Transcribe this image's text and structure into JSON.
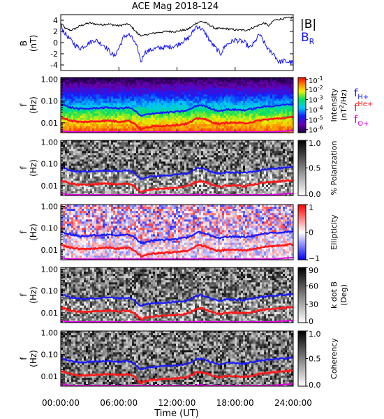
{
  "chart_data": {
    "type": "line",
    "title": "ACE Mag 2018-124",
    "xlabel": "Time (UT)",
    "x_tick_labels": [
      "00:00:00",
      "06:00:00",
      "12:00:00",
      "18:00:00",
      "24:00:00"
    ],
    "x_ticks_hours": [
      0,
      6,
      12,
      18,
      24
    ],
    "xlim_hours": [
      0,
      24
    ],
    "colors": {
      "B_total": "#000000",
      "B_R": "#1414ff",
      "fH": "#1a1aff",
      "fHe": "#ff1a1a",
      "fO": "#e000e0"
    },
    "panels": [
      {
        "name": "field",
        "ylabel": "B",
        "yunit": "(nT)",
        "ylim": [
          -5,
          5
        ],
        "yticks": [
          "4",
          "2",
          "0",
          "-2",
          "-4"
        ],
        "ytick_values": [
          4,
          2,
          0,
          -2,
          -4
        ],
        "legend": [
          "|B|",
          "B",
          "R"
        ],
        "series": [
          {
            "name": "|B|",
            "x": [
              0,
              0.5,
              1,
              1.5,
              2,
              2.5,
              3,
              4,
              5,
              6,
              6.5,
              7,
              7.5,
              8,
              8.5,
              9,
              10,
              11,
              12,
              12.5,
              13,
              13.5,
              14,
              14.5,
              15,
              15.5,
              16,
              17,
              18,
              19,
              19.5,
              20,
              21,
              21.5,
              22,
              23,
              24
            ],
            "values": [
              3.5,
              2.5,
              2.2,
              2.5,
              3.0,
              3.3,
              3.5,
              3.2,
              3.3,
              3.0,
              3.2,
              3.3,
              2.5,
              1.5,
              1.2,
              1.5,
              1.8,
              2.0,
              2.0,
              2.2,
              2.3,
              2.8,
              3.5,
              3.8,
              3.5,
              3.0,
              2.5,
              2.5,
              2.3,
              2.2,
              2.4,
              2.8,
              3.5,
              3.0,
              4.0,
              4.3,
              4.5
            ]
          },
          {
            "name": "B_R",
            "x": [
              0,
              0.5,
              1,
              1.5,
              2,
              2.5,
              3,
              3.5,
              4,
              4.5,
              5,
              5.5,
              6,
              6.5,
              7,
              7.5,
              8,
              8.3,
              8.6,
              9,
              9.5,
              10,
              11,
              12,
              12.5,
              13,
              13.5,
              14,
              14.5,
              15,
              15.5,
              16,
              16.5,
              17,
              18,
              19,
              19.5,
              20,
              20.5,
              21,
              21.5,
              22,
              22.5,
              23,
              24
            ],
            "values": [
              3.0,
              1.5,
              0.5,
              -0.5,
              -1.0,
              -0.5,
              0.0,
              0.5,
              0.0,
              -0.5,
              -1.5,
              -2.5,
              -1.0,
              1.0,
              1.5,
              0.5,
              -1.5,
              -3.5,
              -1.8,
              -1.5,
              -1.2,
              -1.0,
              -0.8,
              -0.5,
              0.2,
              0.5,
              1.5,
              3.0,
              2.5,
              1.5,
              0.0,
              -1.0,
              -2.0,
              -0.5,
              0.5,
              0.0,
              -1.0,
              0.0,
              1.5,
              0.0,
              -1.5,
              -2.0,
              -3.5,
              -3.3,
              -3.6
            ]
          }
        ]
      },
      {
        "name": "intensity",
        "ylabel": "f",
        "yunit": "(Hz)",
        "ylim": [
          0.0035,
          1.2
        ],
        "yscale": "log",
        "yticks": [
          "1.00",
          "0.10",
          "0.01"
        ],
        "ytick_values": [
          1,
          0.1,
          0.01
        ],
        "colorbar": {
          "label": "Intensity",
          "unit": "(nT",
          "unit_sup": "2",
          "unit_rest": "/Hz)",
          "tick_base": "10",
          "tick_exponents": [
            "-1",
            "-2",
            "-3",
            "-4",
            "-5",
            "-6"
          ],
          "tick_values": [
            -1,
            -2,
            -3,
            -4,
            -5,
            -6
          ],
          "range": [
            -6.3,
            -0.8
          ]
        },
        "legend": [
          {
            "label": "f",
            "sub": "H+",
            "color": "#1a1aff"
          },
          {
            "label": "f",
            "sup": "He+",
            "color": "#ff1a1a"
          },
          {
            "label": "f",
            "sub": "O+",
            "color": "#e000e0"
          }
        ]
      },
      {
        "name": "polarization",
        "ylabel": "f",
        "yunit": "(Hz)",
        "ylim": [
          0.0035,
          1.2
        ],
        "yscale": "log",
        "yticks": [
          "1.00",
          "0.10",
          "0.01"
        ],
        "ytick_values": [
          1,
          0.1,
          0.01
        ],
        "colorbar": {
          "label": "% Polarization",
          "ticks": [
            "1.0",
            "0.5",
            "0.0"
          ],
          "tick_values": [
            1.0,
            0.5,
            0.0
          ],
          "range": [
            0,
            1
          ]
        }
      },
      {
        "name": "ellipticity",
        "ylabel": "f",
        "yunit": "(Hz)",
        "ylim": [
          0.0035,
          1.2
        ],
        "yscale": "log",
        "yticks": [
          "1.00",
          "0.10",
          "0.01"
        ],
        "ytick_values": [
          1,
          0.1,
          0.01
        ],
        "colorbar": {
          "label": "Ellipticity",
          "ticks": [
            "1",
            "0",
            "−1"
          ],
          "tick_values": [
            1,
            0,
            -1
          ],
          "range": [
            -1,
            1
          ]
        }
      },
      {
        "name": "kdotb",
        "ylabel": "f",
        "yunit": "(Hz)",
        "ylim": [
          0.0035,
          1.2
        ],
        "yscale": "log",
        "yticks": [
          "1.00",
          "0.10",
          "0.01"
        ],
        "ytick_values": [
          1,
          0.1,
          0.01
        ],
        "colorbar": {
          "label": "k dot B",
          "unit": "(Deg)",
          "ticks": [
            "90",
            "60",
            "30",
            "0"
          ],
          "tick_values": [
            90,
            60,
            30,
            0
          ],
          "range": [
            0,
            90
          ]
        }
      },
      {
        "name": "coherency",
        "ylabel": "f",
        "yunit": "(Hz)",
        "ylim": [
          0.0035,
          1.2
        ],
        "yscale": "log",
        "yticks": [
          "1.00",
          "0.10",
          "0.01"
        ],
        "ytick_values": [
          1,
          0.1,
          0.01
        ],
        "colorbar": {
          "label": "Coherency",
          "ticks": [
            "1.0",
            "0.5",
            "0.0"
          ],
          "tick_values": [
            1.0,
            0.5,
            0.0
          ],
          "range": [
            0,
            1
          ]
        }
      }
    ],
    "gyrofrequency_lines": {
      "x": [
        0,
        1,
        2,
        3,
        4,
        5,
        6,
        6.5,
        7,
        7.5,
        8,
        8.3,
        8.6,
        9,
        9.5,
        10,
        11,
        12,
        12.5,
        13,
        13.5,
        14,
        14.5,
        15,
        15.5,
        16,
        16.5,
        17,
        18,
        19,
        20,
        21,
        22,
        23,
        24
      ],
      "fH": [
        0.07,
        0.05,
        0.043,
        0.045,
        0.048,
        0.05,
        0.045,
        0.048,
        0.05,
        0.04,
        0.025,
        0.02,
        0.022,
        0.025,
        0.027,
        0.028,
        0.03,
        0.032,
        0.034,
        0.036,
        0.045,
        0.06,
        0.065,
        0.055,
        0.045,
        0.038,
        0.035,
        0.04,
        0.04,
        0.038,
        0.045,
        0.055,
        0.06,
        0.066,
        0.072
      ],
      "fHe": [
        0.0175,
        0.0125,
        0.0108,
        0.0112,
        0.012,
        0.0125,
        0.0112,
        0.012,
        0.0125,
        0.01,
        0.0062,
        0.005,
        0.0055,
        0.0062,
        0.0068,
        0.007,
        0.0075,
        0.008,
        0.0085,
        0.009,
        0.0112,
        0.015,
        0.0162,
        0.0138,
        0.0112,
        0.0095,
        0.0088,
        0.01,
        0.01,
        0.0095,
        0.0112,
        0.0138,
        0.015,
        0.0165,
        0.018
      ],
      "fO": [
        0.0044,
        0.0037,
        0.0035,
        0.0035,
        0.0036,
        0.0037,
        0.0035,
        0.0036,
        0.0037,
        0.0035,
        0.0035,
        0.0035,
        0.0035,
        0.0035,
        0.0035,
        0.0035,
        0.0035,
        0.0035,
        0.0035,
        0.0035,
        0.0035,
        0.0038,
        0.0041,
        0.0036,
        0.0035,
        0.0035,
        0.0035,
        0.0035,
        0.0035,
        0.0035,
        0.0035,
        0.0035,
        0.0038,
        0.0041,
        0.0045
      ]
    }
  }
}
